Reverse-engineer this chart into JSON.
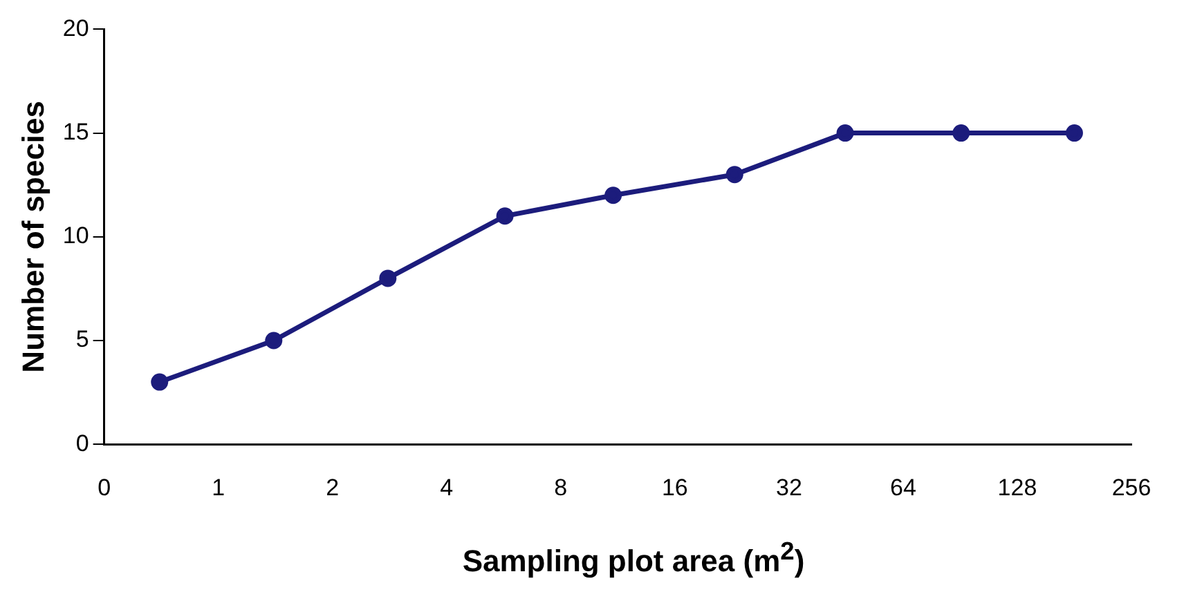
{
  "chart_data": {
    "type": "line",
    "xlabel": "Sampling plot area (m$^{2}$)",
    "ylabel": "Number of species",
    "x": [
      0.7,
      1.4,
      2.8,
      5.7,
      11,
      23,
      45,
      91,
      181
    ],
    "xlim": [
      0.5,
      256
    ],
    "log": "x",
    "xticks": [
      {
        "value": 0.5,
        "label": "0"
      },
      1,
      2,
      4,
      8,
      16,
      32,
      64,
      128,
      256
    ],
    "series": [
      {
        "color": "#1c1c7c",
        "values": [
          3,
          5,
          8,
          11,
          12,
          13,
          15,
          15,
          15
        ]
      }
    ],
    "ylim": [
      0,
      20
    ],
    "yticks": [
      0,
      5,
      10,
      15,
      20
    ],
    "grid": false,
    "legend": false,
    "marker": "circle",
    "line_style": "solid"
  }
}
